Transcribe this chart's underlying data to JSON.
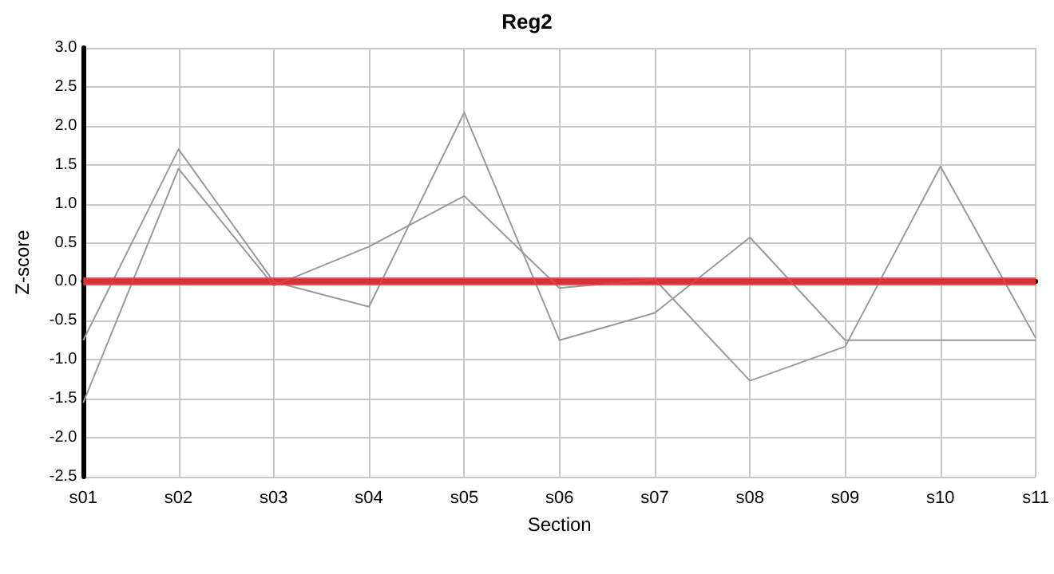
{
  "chart_data": {
    "type": "line",
    "title": "Reg2",
    "xlabel": "Section",
    "ylabel": "Z-score",
    "categories": [
      "s01",
      "s02",
      "s03",
      "s04",
      "s05",
      "s06",
      "s07",
      "s08",
      "s09",
      "s10",
      "s11"
    ],
    "series": [
      {
        "color": "#9a9a9a",
        "values": [
          -0.75,
          1.7,
          0.0,
          -0.32,
          2.17,
          -0.75,
          -0.4,
          0.57,
          -0.75,
          -0.75,
          -0.75
        ]
      },
      {
        "color": "#9a9a9a",
        "values": [
          -1.55,
          1.45,
          -0.05,
          0.45,
          1.1,
          -0.08,
          0.03,
          -1.27,
          -0.83,
          1.48,
          -0.72
        ]
      }
    ],
    "ylim": [
      -2.5,
      3.0
    ],
    "yticks": [
      {
        "value": -2.5,
        "label": "-2.5"
      },
      {
        "value": -2,
        "label": "-2.0"
      },
      {
        "value": -1.5,
        "label": "-1.5"
      },
      {
        "value": -1,
        "label": "-1.0"
      },
      {
        "value": -0.5,
        "label": "-0.5"
      },
      {
        "value": 0,
        "label": "0.0"
      },
      {
        "value": 0.5,
        "label": "0.5"
      },
      {
        "value": 1,
        "label": "1.0"
      },
      {
        "value": 1.5,
        "label": "1.5"
      },
      {
        "value": 2,
        "label": "2.0"
      },
      {
        "value": 2.5,
        "label": "2.5"
      },
      {
        "value": 3,
        "label": "3.0"
      }
    ],
    "ref_lines": [
      {
        "axis": "y",
        "value": 0,
        "color": "#e8383d"
      }
    ],
    "grid": true,
    "marker": "none",
    "line_style": "solid"
  }
}
